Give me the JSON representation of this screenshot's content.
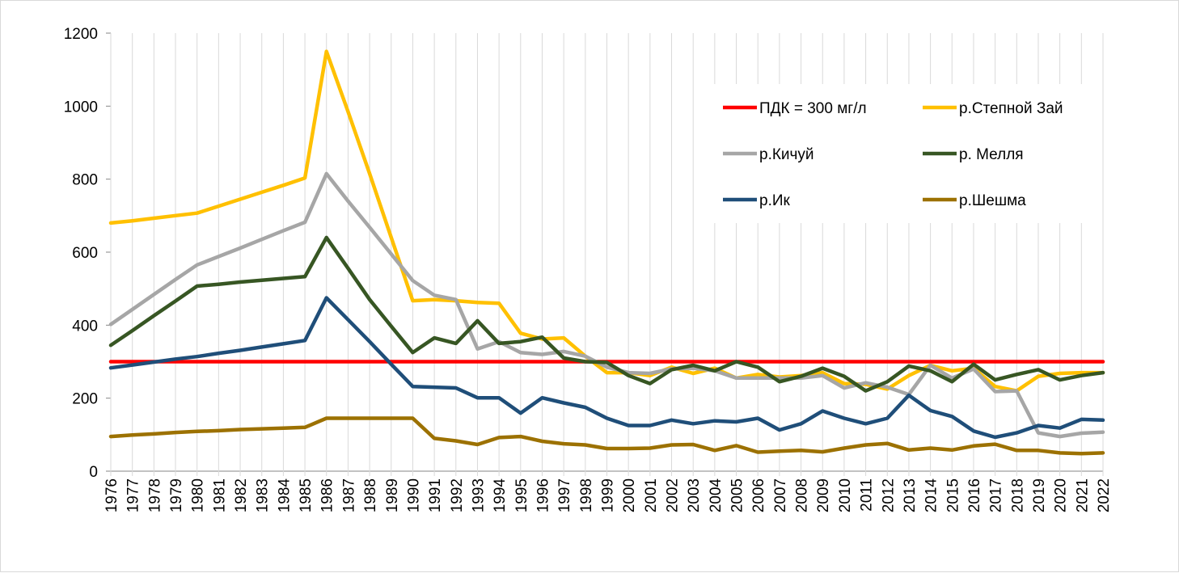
{
  "chart_data": {
    "type": "line",
    "x": [
      "1976",
      "1977",
      "1978",
      "1979",
      "1980",
      "1981",
      "1982",
      "1983",
      "1984",
      "1985",
      "1986",
      "1987",
      "1988",
      "1989",
      "1990",
      "1991",
      "1992",
      "1993",
      "1994",
      "1995",
      "1996",
      "1997",
      "1998",
      "1999",
      "2000",
      "2001",
      "2002",
      "2003",
      "2004",
      "2005",
      "2006",
      "2007",
      "2008",
      "2009",
      "2010",
      "2011",
      "2012",
      "2013",
      "2014",
      "2015",
      "2016",
      "2017",
      "2018",
      "2019",
      "2020",
      "2021",
      "2022"
    ],
    "ylim": [
      0,
      1200
    ],
    "yticks": [
      "0",
      "200",
      "400",
      "600",
      "800",
      "1000",
      "1200"
    ],
    "grid": false,
    "legend_position": "top-right",
    "series": [
      {
        "name": "ПДК = 300 мг/л",
        "color": "#ff0000",
        "values": [
          300,
          300,
          300,
          300,
          300,
          300,
          300,
          300,
          300,
          300,
          300,
          300,
          300,
          300,
          300,
          300,
          300,
          300,
          300,
          300,
          300,
          300,
          300,
          300,
          300,
          300,
          300,
          300,
          300,
          300,
          300,
          300,
          300,
          300,
          300,
          300,
          300,
          300,
          300,
          300,
          300,
          300,
          300,
          300,
          300,
          300,
          300
        ]
      },
      {
        "name": "р.Степной Зай",
        "color": "#ffc000",
        "values": [
          680,
          686,
          693,
          700,
          707,
          726,
          745,
          764,
          783,
          803,
          1150,
          985,
          815,
          640,
          467,
          470,
          467,
          462,
          460,
          378,
          362,
          365,
          315,
          270,
          270,
          262,
          285,
          268,
          282,
          255,
          265,
          258,
          262,
          270,
          240,
          238,
          225,
          262,
          290,
          275,
          282,
          232,
          220,
          260,
          268,
          270,
          270
        ]
      },
      {
        "name": "р.Кичуй",
        "color": "#a6a6a6",
        "values": [
          402,
          443,
          484,
          525,
          565,
          588,
          611,
          635,
          659,
          682,
          815,
          740,
          668,
          595,
          522,
          482,
          470,
          335,
          355,
          325,
          320,
          328,
          315,
          285,
          270,
          268,
          280,
          282,
          275,
          255,
          255,
          255,
          255,
          262,
          228,
          242,
          230,
          210,
          290,
          255,
          280,
          218,
          220,
          105,
          95,
          104,
          107
        ]
      },
      {
        "name": "р. Мелля",
        "color": "#375623",
        "values": [
          345,
          385,
          426,
          466,
          507,
          512,
          518,
          523,
          528,
          533,
          640,
          556,
          470,
          397,
          325,
          365,
          350,
          412,
          350,
          355,
          367,
          310,
          300,
          298,
          262,
          240,
          278,
          290,
          275,
          300,
          285,
          245,
          260,
          282,
          260,
          220,
          245,
          288,
          275,
          245,
          293,
          250,
          265,
          278,
          250,
          262,
          270
        ]
      },
      {
        "name": "р.Ик",
        "color": "#1f4e79",
        "values": [
          283,
          291,
          299,
          307,
          314,
          323,
          331,
          340,
          349,
          358,
          475,
          415,
          355,
          293,
          232,
          230,
          228,
          201,
          201,
          159,
          201,
          187,
          175,
          145,
          125,
          125,
          140,
          130,
          138,
          135,
          145,
          113,
          130,
          165,
          145,
          130,
          145,
          208,
          166,
          150,
          110,
          93,
          105,
          125,
          118,
          142,
          140
        ]
      },
      {
        "name": "р.Шешма",
        "color": "#9c7100",
        "values": [
          95,
          99,
          102,
          106,
          109,
          111,
          114,
          116,
          118,
          120,
          145,
          145,
          145,
          145,
          145,
          90,
          83,
          73,
          92,
          95,
          82,
          75,
          72,
          62,
          62,
          63,
          72,
          73,
          57,
          70,
          52,
          55,
          57,
          53,
          63,
          72,
          76,
          58,
          63,
          58,
          69,
          74,
          57,
          57,
          50,
          48,
          50
        ]
      }
    ]
  }
}
